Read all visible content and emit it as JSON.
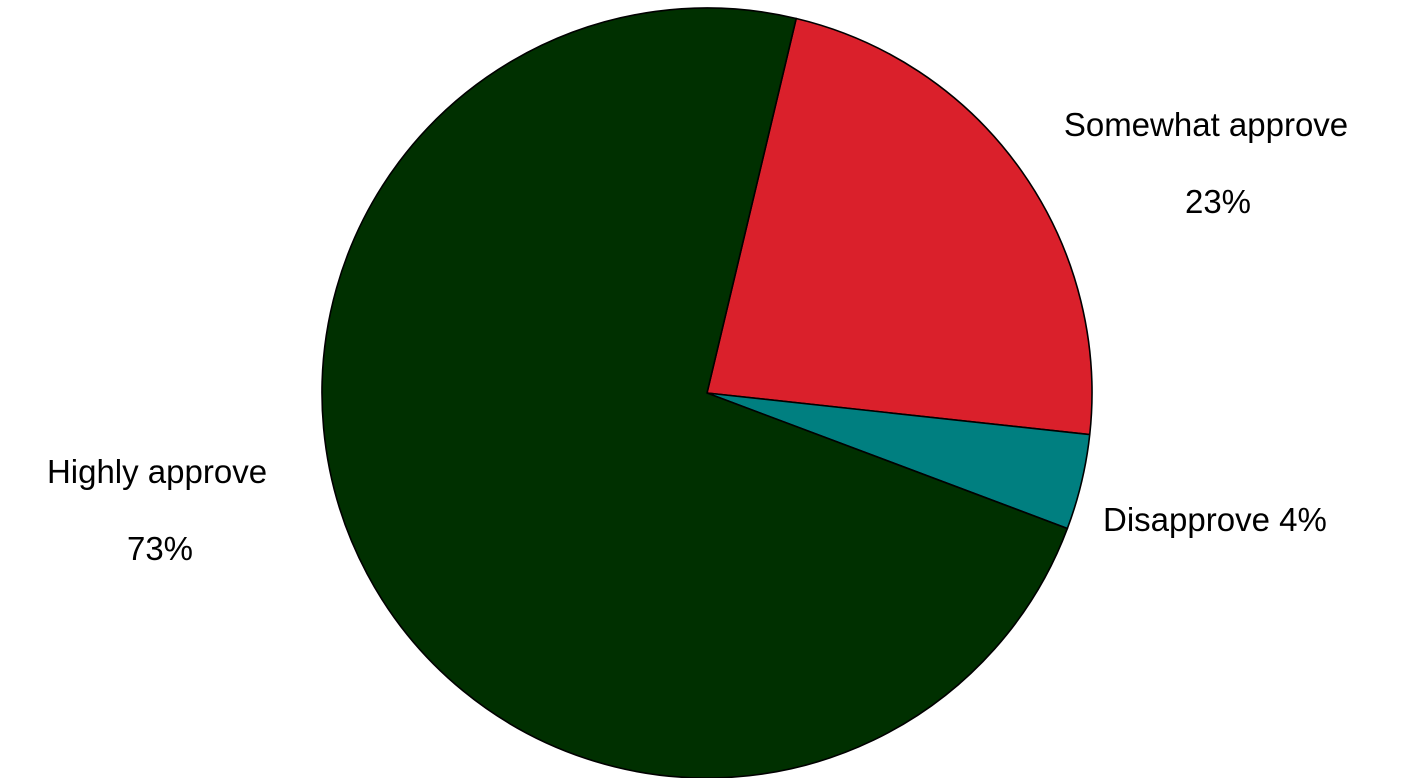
{
  "chart_data": {
    "type": "pie",
    "title": "",
    "slices": [
      {
        "category": "Somewhat approve",
        "value": 23,
        "label_text": "23%",
        "color": "#da202b"
      },
      {
        "category": "Disapprove",
        "value": 4,
        "label_text": "4%",
        "color": "#007f80"
      },
      {
        "category": "Highly approve",
        "value": 73,
        "label_text": "73%",
        "color": "#003000"
      }
    ],
    "legend": "none",
    "outline_color": "#000000"
  }
}
